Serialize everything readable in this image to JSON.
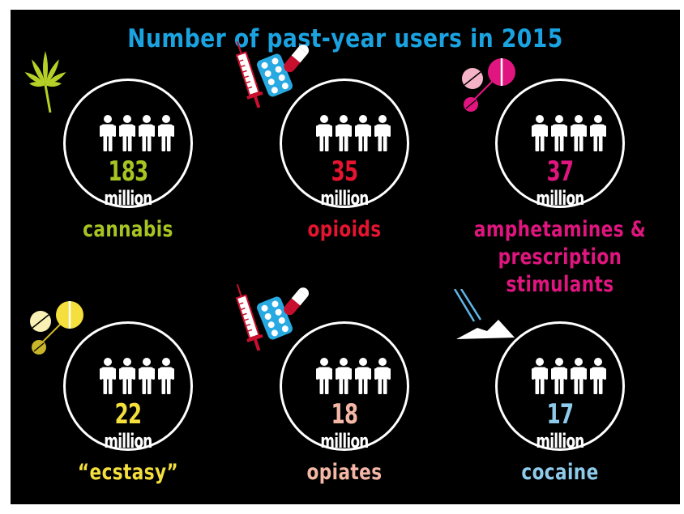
{
  "chart_data": {
    "type": "table",
    "title": "Number of past-year users in 2015",
    "unit": "million",
    "categories": [
      "cannabis",
      "opioids",
      "amphetamines & prescription stimulants",
      "“ecstasy”",
      "opiates",
      "cocaine"
    ],
    "values": [
      183,
      35,
      37,
      22,
      18,
      17
    ]
  },
  "items": [
    {
      "label_lines": [
        "cannabis"
      ],
      "value": "183",
      "unit": "million",
      "color": "#a8c422",
      "icon": "cannabis-leaf-icon"
    },
    {
      "label_lines": [
        "opioids"
      ],
      "value": "35",
      "unit": "million",
      "color": "#e5142f",
      "icon": "syringe-pills-icon"
    },
    {
      "label_lines": [
        "amphetamines &",
        "prescription stimulants"
      ],
      "value": "37",
      "unit": "million",
      "color": "#e0157f",
      "icon": "pink-pills-icon"
    },
    {
      "label_lines": [
        "“ecstasy”"
      ],
      "value": "22",
      "unit": "million",
      "color": "#f4df3c",
      "icon": "yellow-pills-icon"
    },
    {
      "label_lines": [
        "opiates"
      ],
      "value": "18",
      "unit": "million",
      "color": "#f4b7a6",
      "icon": "syringe-pills-icon"
    },
    {
      "label_lines": [
        "cocaine"
      ],
      "value": "17",
      "unit": "million",
      "color": "#8ecbeb",
      "icon": "cocaine-powder-icon"
    }
  ],
  "colors": {
    "title": "#1aa3e0",
    "background": "#000000",
    "ring": "#ffffff"
  }
}
